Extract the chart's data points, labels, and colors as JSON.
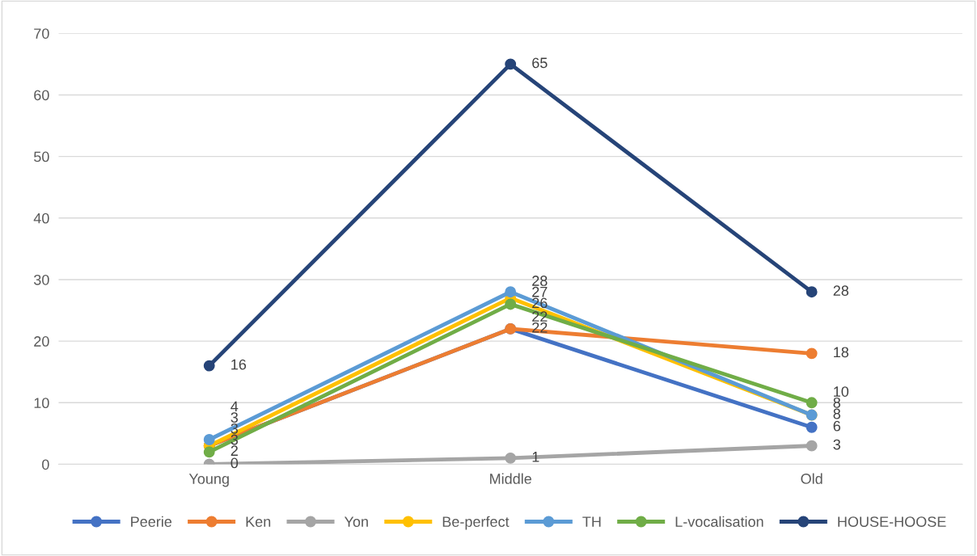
{
  "chart_data": {
    "type": "line",
    "categories": [
      "Young",
      "Middle",
      "Old"
    ],
    "series": [
      {
        "name": "Peerie",
        "color": "#4472c4",
        "values": [
          3,
          22,
          6
        ]
      },
      {
        "name": "Ken",
        "color": "#ed7d31",
        "values": [
          3,
          22,
          18
        ]
      },
      {
        "name": "Yon",
        "color": "#a5a5a5",
        "values": [
          0,
          1,
          3
        ]
      },
      {
        "name": "Be-perfect",
        "color": "#ffc000",
        "values": [
          3,
          27,
          8
        ]
      },
      {
        "name": "TH",
        "color": "#5b9bd5",
        "values": [
          4,
          28,
          8
        ]
      },
      {
        "name": "L-vocalisation",
        "color": "#70ad47",
        "values": [
          2,
          26,
          10
        ]
      },
      {
        "name": "HOUSE-HOOSE",
        "color": "#264478",
        "values": [
          16,
          65,
          28
        ]
      }
    ],
    "ylim": [
      0,
      70
    ],
    "yticks": [
      0,
      10,
      20,
      30,
      40,
      50,
      60,
      70
    ],
    "grid": "y",
    "legend": "bottom",
    "marker": "circle",
    "line_style": "solid",
    "data_labels": true
  }
}
